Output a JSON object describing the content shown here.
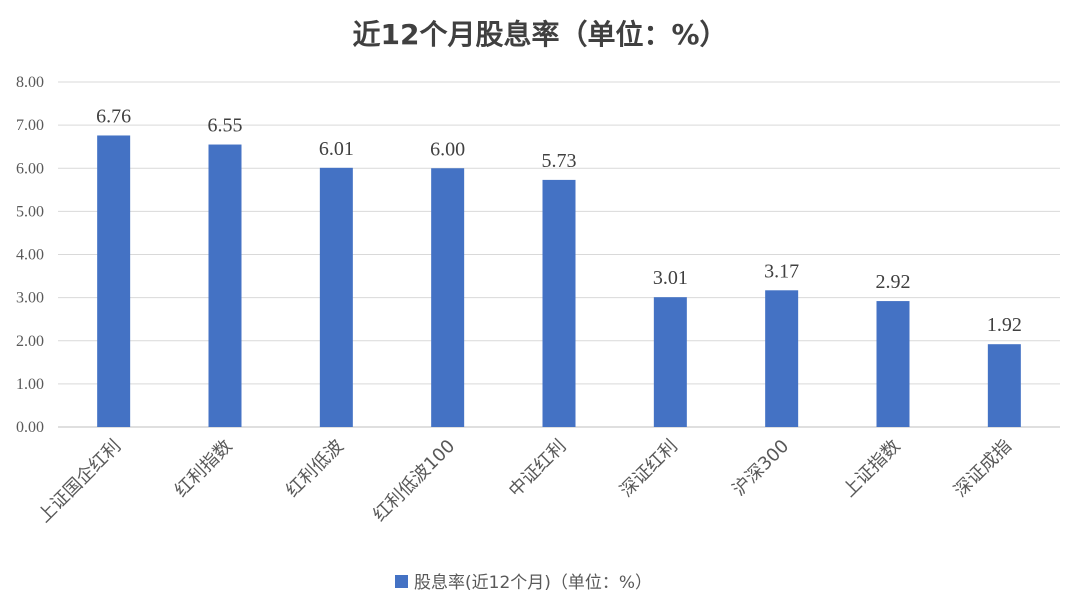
{
  "chart_data": {
    "type": "bar",
    "title": "近12个月股息率（单位：%）",
    "categories": [
      "上证国企红利",
      "红利指数",
      "红利低波",
      "红利低波100",
      "中证红利",
      "深证红利",
      "沪深300",
      "上证指数",
      "深证成指"
    ],
    "series": [
      {
        "name": "股息率(近12个月)（单位：%）",
        "values": [
          6.76,
          6.55,
          6.01,
          6.0,
          5.73,
          3.01,
          3.17,
          2.92,
          1.92
        ],
        "labels": [
          "6.76",
          "6.55",
          "6.01",
          "6.00",
          "5.73",
          "3.01",
          "3.17",
          "2.92",
          "1.92"
        ],
        "color": "#4472C4"
      }
    ],
    "ylim": [
      0,
      8
    ],
    "yticks": [
      "0.00",
      "1.00",
      "2.00",
      "3.00",
      "4.00",
      "5.00",
      "6.00",
      "7.00",
      "8.00"
    ],
    "grid": true,
    "legend_position": "bottom",
    "xlabel": "",
    "ylabel": ""
  }
}
